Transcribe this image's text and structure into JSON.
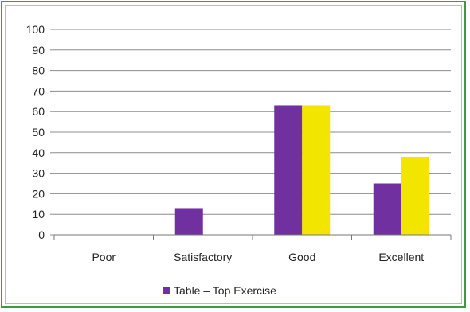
{
  "colors": {
    "frame": "#3c9a45",
    "series_purple": "#7030a0",
    "series_yellow": "#f2e600",
    "gridline": "#8c8c8c"
  },
  "chart_data": {
    "type": "bar",
    "title": "",
    "xlabel": "",
    "ylabel": "",
    "ylim": [
      0,
      100
    ],
    "yticks": [
      0,
      10,
      20,
      30,
      40,
      50,
      60,
      70,
      80,
      90,
      100
    ],
    "grid": true,
    "legend_position": "bottom",
    "categories": [
      "Poor",
      "Satisfactory",
      "Good",
      "Excellent"
    ],
    "series": [
      {
        "name": "Table – Top Exercise",
        "color": "#7030a0",
        "values": [
          0,
          13,
          63,
          25
        ]
      },
      {
        "color": "#f2e600",
        "values": [
          0,
          0,
          63,
          38
        ]
      }
    ]
  }
}
